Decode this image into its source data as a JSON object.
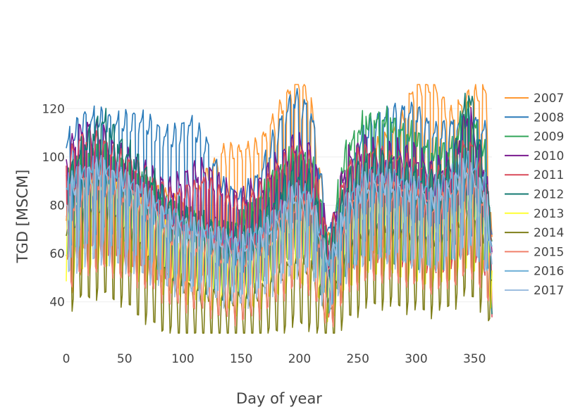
{
  "chart_data": {
    "type": "line",
    "xlabel": "Day of year",
    "ylabel": "TGD [MSCM]",
    "xlim": [
      0,
      365
    ],
    "ylim": [
      25,
      130
    ],
    "xticks": [
      0,
      50,
      100,
      150,
      200,
      250,
      300,
      350
    ],
    "yticks": [
      40,
      60,
      80,
      100,
      120
    ],
    "grid": true,
    "legend_position": "right",
    "series": [
      {
        "name": "2007",
        "color": "#ff9933",
        "x": [
          0,
          15,
          30,
          45,
          60,
          75,
          90,
          105,
          120,
          135,
          150,
          165,
          180,
          195,
          200,
          210,
          225,
          240,
          255,
          270,
          285,
          300,
          315,
          330,
          345,
          360,
          365
        ],
        "y": [
          70,
          88,
          92,
          86,
          84,
          80,
          78,
          70,
          86,
          96,
          96,
          98,
          110,
          122,
          126,
          115,
          60,
          72,
          88,
          100,
          104,
          124,
          122,
          110,
          118,
          120,
          60
        ]
      },
      {
        "name": "2008",
        "color": "#2b7bba",
        "x": [
          0,
          15,
          30,
          45,
          60,
          75,
          90,
          105,
          120,
          135,
          150,
          165,
          180,
          195,
          210,
          225,
          240,
          255,
          270,
          285,
          300,
          315,
          330,
          345,
          360,
          365
        ],
        "y": [
          100,
          110,
          110,
          108,
          110,
          106,
          102,
          108,
          100,
          82,
          78,
          86,
          104,
          118,
          112,
          64,
          82,
          104,
          110,
          112,
          112,
          104,
          106,
          110,
          104,
          60
        ]
      },
      {
        "name": "2009",
        "color": "#33a65a",
        "x": [
          0,
          15,
          30,
          45,
          60,
          75,
          90,
          105,
          120,
          135,
          150,
          165,
          180,
          195,
          210,
          225,
          240,
          255,
          270,
          285,
          300,
          315,
          330,
          345,
          360,
          365
        ],
        "y": [
          90,
          96,
          100,
          94,
          90,
          84,
          76,
          74,
          70,
          68,
          72,
          80,
          90,
          98,
          96,
          62,
          100,
          110,
          112,
          108,
          104,
          98,
          100,
          116,
          96,
          60
        ]
      },
      {
        "name": "2010",
        "color": "#7a1a8f",
        "x": [
          0,
          15,
          30,
          45,
          60,
          75,
          90,
          105,
          120,
          135,
          150,
          165,
          180,
          195,
          210,
          225,
          240,
          255,
          270,
          285,
          300,
          315,
          330,
          345,
          360,
          365
        ],
        "y": [
          96,
          106,
          104,
          96,
          92,
          86,
          82,
          88,
          90,
          82,
          78,
          84,
          92,
          100,
          98,
          62,
          94,
          100,
          96,
          98,
          96,
          90,
          94,
          114,
          88,
          60
        ]
      },
      {
        "name": "2011",
        "color": "#d94a5a",
        "x": [
          0,
          15,
          30,
          45,
          60,
          75,
          90,
          105,
          120,
          135,
          150,
          165,
          180,
          195,
          210,
          225,
          240,
          255,
          270,
          285,
          300,
          315,
          330,
          345,
          360,
          365
        ],
        "y": [
          92,
          102,
          100,
          94,
          90,
          84,
          78,
          80,
          84,
          78,
          74,
          80,
          88,
          96,
          92,
          60,
          88,
          96,
          94,
          92,
          90,
          86,
          90,
          100,
          84,
          60
        ]
      },
      {
        "name": "2012",
        "color": "#137a72",
        "x": [
          0,
          15,
          30,
          45,
          60,
          75,
          90,
          105,
          120,
          135,
          150,
          165,
          180,
          195,
          210,
          225,
          240,
          255,
          270,
          285,
          300,
          315,
          330,
          345,
          360,
          365
        ],
        "y": [
          88,
          100,
          112,
          102,
          94,
          86,
          76,
          72,
          68,
          64,
          64,
          70,
          80,
          90,
          86,
          56,
          84,
          92,
          94,
          90,
          88,
          86,
          90,
          122,
          86,
          60
        ]
      },
      {
        "name": "2013",
        "color": "#ffff33",
        "x": [
          0,
          15,
          30,
          45,
          60,
          75,
          90,
          105,
          120,
          135,
          150,
          165,
          180,
          195,
          210,
          225,
          240,
          255,
          270,
          285,
          300,
          315,
          330,
          345,
          360,
          365
        ],
        "y": [
          70,
          80,
          82,
          80,
          76,
          70,
          64,
          60,
          58,
          54,
          52,
          56,
          62,
          70,
          68,
          44,
          66,
          74,
          76,
          74,
          70,
          68,
          72,
          80,
          70,
          50
        ]
      },
      {
        "name": "2014",
        "color": "#7f7f1a",
        "x": [
          0,
          15,
          30,
          45,
          60,
          75,
          90,
          105,
          120,
          135,
          150,
          165,
          180,
          195,
          210,
          225,
          240,
          255,
          270,
          285,
          300,
          315,
          330,
          345,
          360,
          365
        ],
        "y": [
          62,
          70,
          72,
          68,
          60,
          52,
          46,
          42,
          40,
          38,
          38,
          40,
          46,
          52,
          50,
          34,
          54,
          62,
          64,
          62,
          60,
          58,
          62,
          70,
          58,
          42
        ]
      },
      {
        "name": "2015",
        "color": "#f0806c",
        "x": [
          0,
          15,
          30,
          45,
          60,
          75,
          90,
          105,
          120,
          135,
          150,
          165,
          180,
          195,
          210,
          225,
          240,
          255,
          270,
          285,
          300,
          315,
          330,
          345,
          360,
          365
        ],
        "y": [
          72,
          84,
          86,
          82,
          78,
          72,
          64,
          62,
          60,
          56,
          54,
          58,
          66,
          76,
          74,
          48,
          72,
          80,
          82,
          80,
          78,
          74,
          78,
          86,
          74,
          52
        ]
      },
      {
        "name": "2016",
        "color": "#6aaed6",
        "x": [
          0,
          15,
          30,
          45,
          60,
          75,
          90,
          105,
          120,
          135,
          150,
          165,
          180,
          195,
          210,
          225,
          240,
          255,
          270,
          285,
          300,
          315,
          330,
          345,
          360,
          365
        ],
        "y": [
          86,
          92,
          94,
          90,
          86,
          80,
          74,
          70,
          68,
          66,
          64,
          68,
          74,
          84,
          82,
          54,
          80,
          88,
          90,
          88,
          86,
          84,
          88,
          96,
          84,
          58
        ]
      },
      {
        "name": "2017",
        "color": "#9dbedf",
        "x": [
          0,
          15,
          30,
          45,
          60,
          75,
          90,
          105,
          120,
          135,
          150,
          165,
          180,
          195,
          210,
          225,
          240,
          255,
          270,
          285,
          300,
          315,
          330,
          345,
          360,
          365
        ],
        "y": [
          80,
          88,
          90,
          86,
          82,
          76,
          70,
          68,
          66,
          62,
          60,
          64,
          70,
          80,
          78,
          52,
          76,
          84,
          86,
          84,
          82,
          80,
          84,
          92,
          80,
          56
        ]
      }
    ]
  }
}
